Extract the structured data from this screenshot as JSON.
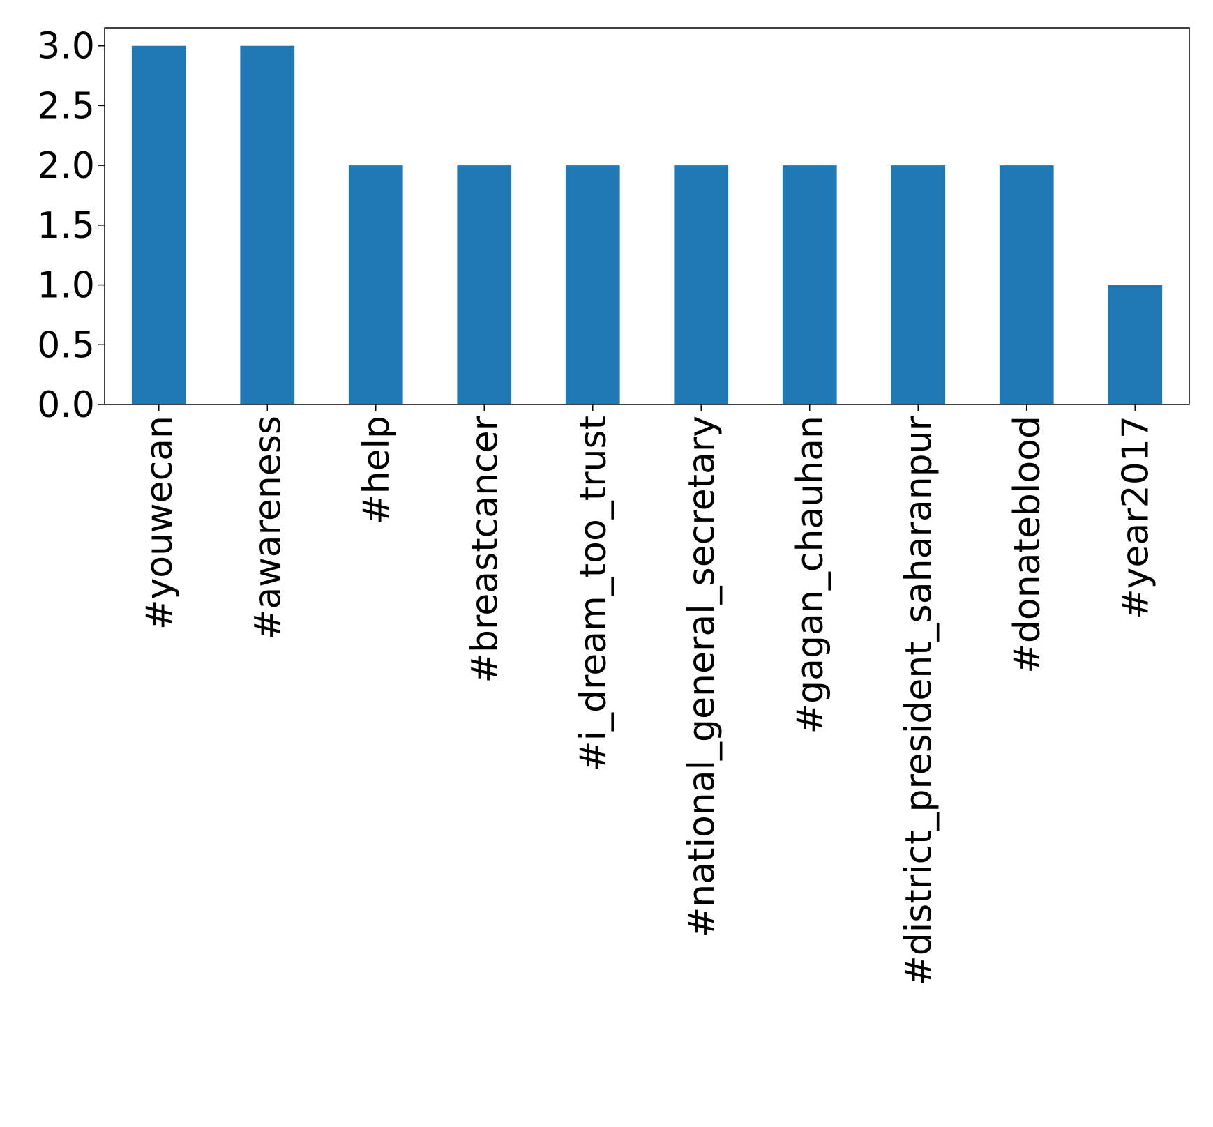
{
  "chart_data": {
    "type": "bar",
    "title": "",
    "xlabel": "",
    "ylabel": "",
    "categories": [
      "#youwecan",
      "#awareness",
      "#help",
      "#breastcancer",
      "#i_dream_too_trust",
      "#national_general_secretary",
      "#gagan_chauhan",
      "#district_president_saharanpur",
      "#donateblood",
      "#year2017"
    ],
    "values": [
      3,
      3,
      2,
      2,
      2,
      2,
      2,
      2,
      2,
      1
    ],
    "ylim": [
      0,
      3.15
    ],
    "yticks": [
      0.0,
      0.5,
      1.0,
      1.5,
      2.0,
      2.5,
      3.0
    ],
    "ytick_labels": [
      "0.0",
      "0.5",
      "1.0",
      "1.5",
      "2.0",
      "2.5",
      "3.0"
    ],
    "bar_color": "#1f77b4",
    "grid": false,
    "legend": "none",
    "xtick_rotation": "vertical"
  }
}
